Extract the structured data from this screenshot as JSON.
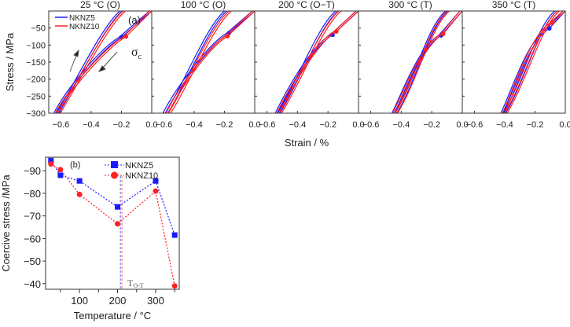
{
  "chart_data": [
    {
      "type": "line",
      "panel_label": "(a)",
      "xlabel": "Strain / %",
      "ylabel": "Stress / MPa",
      "xlim": [
        -0.68,
        0.0
      ],
      "ylim": [
        -300,
        0
      ],
      "xticks": [
        "-0.6",
        "-0.4",
        "-0.2",
        "0.0"
      ],
      "xtick_values": [
        -0.6,
        -0.4,
        -0.2,
        0.0
      ],
      "yticks": [
        "-50",
        "-100",
        "-150",
        "-200",
        "-250",
        "-300"
      ],
      "ytick_values": [
        -50,
        -100,
        -150,
        -200,
        -250,
        -300
      ],
      "legend": [
        "NKNZ5",
        "NKNZ10"
      ],
      "legend_placement": "top-left",
      "annotation": "σ",
      "annotation_sub": "c",
      "colors": {
        "NKNZ5": "#1a1aff",
        "NKNZ10": "#ff2020"
      },
      "panels": [
        {
          "title": "25 °C (O)",
          "loops": [
            {
              "series": "NKNZ5",
              "min_strain": -0.63,
              "unload_end_strain": -0.21,
              "coercive": [
                -0.2,
                -77
              ]
            },
            {
              "series": "NKNZ10",
              "min_strain": -0.62,
              "unload_end_strain": -0.19,
              "coercive": [
                -0.17,
                -75
              ]
            }
          ]
        },
        {
          "title": "100 °C (O)",
          "loops": [
            {
              "series": "NKNZ5",
              "min_strain": -0.59,
              "unload_end_strain": -0.2,
              "coercive": [
                -0.17,
                -65
              ]
            },
            {
              "series": "NKNZ10",
              "min_strain": -0.57,
              "unload_end_strain": -0.17,
              "coercive": [
                -0.18,
                -74
              ]
            }
          ]
        },
        {
          "title": "200 °C (O−T)",
          "loops": [
            {
              "series": "NKNZ5",
              "min_strain": -0.53,
              "unload_end_strain": -0.15,
              "coercive": [
                -0.17,
                -70
              ]
            },
            {
              "series": "NKNZ10",
              "min_strain": -0.52,
              "unload_end_strain": -0.13,
              "coercive": [
                -0.145,
                -60
              ]
            }
          ]
        },
        {
          "title": "300 °C (T)",
          "loops": [
            {
              "series": "NKNZ5",
              "min_strain": -0.445,
              "unload_end_strain": -0.11,
              "coercive": [
                -0.14,
                -72
              ]
            },
            {
              "series": "NKNZ10",
              "min_strain": -0.44,
              "unload_end_strain": -0.1,
              "coercive": [
                -0.125,
                -67
              ]
            }
          ]
        },
        {
          "title": "350 °C (T)",
          "loops": [
            {
              "series": "NKNZ5",
              "min_strain": -0.41,
              "unload_end_strain": -0.07,
              "coercive": [
                -0.105,
                -51
              ]
            },
            {
              "series": "NKNZ10",
              "min_strain": -0.4,
              "unload_end_strain": -0.055,
              "coercive": [
                -0.085,
                -35
              ]
            }
          ]
        }
      ]
    },
    {
      "type": "line",
      "panel_label": "(b)",
      "xlabel": "Temperature / °C",
      "ylabel": "Coercive stress /MPa",
      "xlim": [
        11,
        362
      ],
      "ylim": [
        -37.5,
        -96
      ],
      "xticks": [
        "100",
        "200",
        "300"
      ],
      "xtick_values": [
        100,
        200,
        300
      ],
      "minor_xtick_values": [
        50,
        150,
        250,
        350
      ],
      "yticks": [
        "-90",
        "-80",
        "-70",
        "-60",
        "-50",
        "-40"
      ],
      "ytick_values": [
        -90,
        -80,
        -70,
        -60,
        -50,
        -40
      ],
      "legend_placement": "top-right",
      "vline": {
        "x": 210,
        "label": "T",
        "label_sub": "O-T"
      },
      "series": [
        {
          "name": "NKNZ5",
          "color": "#1a1aff",
          "marker": "square",
          "x": [
            25,
            50,
            100,
            200,
            300,
            350
          ],
          "y": [
            -94.5,
            -88,
            -85.5,
            -74,
            -85.5,
            -61.5
          ]
        },
        {
          "name": "NKNZ10",
          "color": "#ff2020",
          "marker": "circle",
          "x": [
            25,
            50,
            100,
            200,
            300,
            350
          ],
          "y": [
            -93,
            -90.5,
            -79.5,
            -66.5,
            -81,
            -39
          ]
        }
      ]
    }
  ]
}
